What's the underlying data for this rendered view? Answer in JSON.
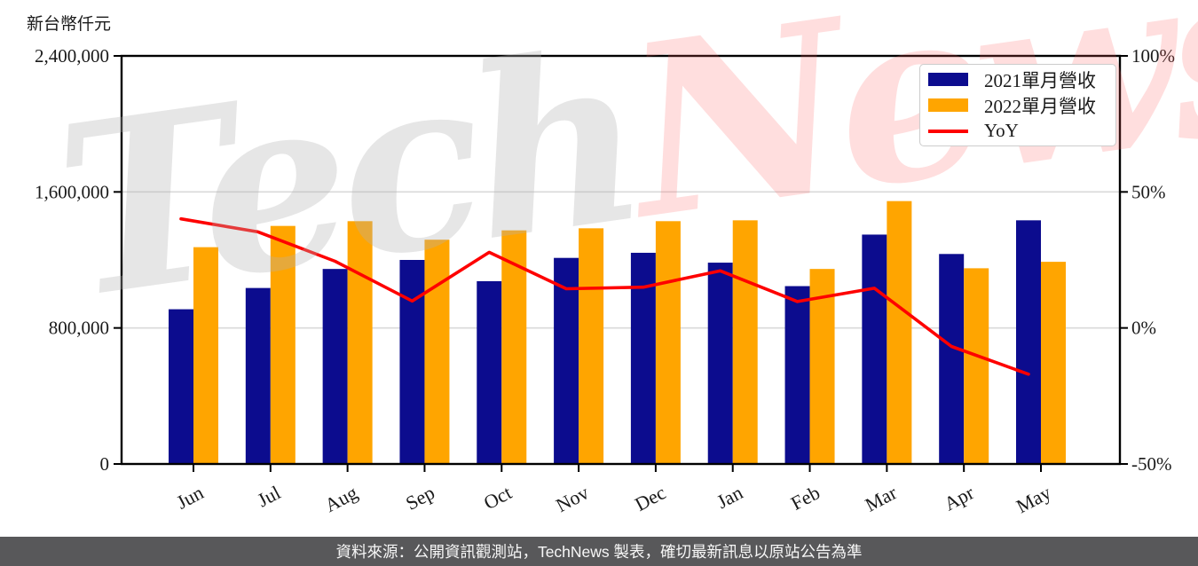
{
  "header": {
    "unit_label": "新台幣仟元"
  },
  "watermark": {
    "part1": "Tech",
    "part2": "News"
  },
  "legend": {
    "items": [
      {
        "label": "2021單月營收",
        "marker": "box",
        "color": "#0c0c8e"
      },
      {
        "label": "2022單月營收",
        "marker": "box",
        "color": "#ffa500"
      },
      {
        "label": "YoY",
        "marker": "line",
        "color": "#fe0000"
      }
    ]
  },
  "footer": {
    "text": "資料來源：公開資訊觀測站，TechNews 製表，確切最新訊息以原站公告為準",
    "bg_color": "#58585a"
  },
  "chart_data": {
    "type": "bar+line",
    "categories": [
      "Jun",
      "Jul",
      "Aug",
      "Sep",
      "Oct",
      "Nov",
      "Dec",
      "Jan",
      "Feb",
      "Mar",
      "Apr",
      "May"
    ],
    "series": [
      {
        "name": "2021單月營收",
        "color": "#0c0c8e",
        "values": [
          910000,
          1035000,
          1147000,
          1200000,
          1075000,
          1212000,
          1242000,
          1184000,
          1046000,
          1349000,
          1235000,
          1433000
        ]
      },
      {
        "name": "2022單月營收",
        "color": "#ffa500",
        "values": [
          1275000,
          1400000,
          1428000,
          1319000,
          1374000,
          1386000,
          1428000,
          1433000,
          1147000,
          1546000,
          1151000,
          1189000
        ]
      }
    ],
    "line_series": {
      "name": "YoY",
      "color": "#fe0000",
      "unit": "%",
      "values": [
        40.1,
        35.3,
        24.5,
        9.9,
        27.8,
        14.4,
        15.0,
        21.0,
        9.7,
        14.6,
        -6.8,
        -17.0
      ]
    },
    "left_axis": {
      "label": "新台幣仟元",
      "min": 0,
      "max": 2400000,
      "ticks": [
        {
          "value": 0,
          "label": "0"
        },
        {
          "value": 800000,
          "label": "800,000"
        },
        {
          "value": 1600000,
          "label": "1,600,000"
        },
        {
          "value": 2400000,
          "label": "2,400,000"
        }
      ]
    },
    "right_axis": {
      "min": -50,
      "max": 100,
      "ticks": [
        {
          "value": -50,
          "label": "-50%"
        },
        {
          "value": 0,
          "label": "0%"
        },
        {
          "value": 50,
          "label": "50%"
        },
        {
          "value": 100,
          "label": "100%"
        }
      ]
    },
    "grid": "horizontal",
    "legend_position": "top-right",
    "frame_color": "#000000",
    "grid_color": "#d9d9d9"
  }
}
